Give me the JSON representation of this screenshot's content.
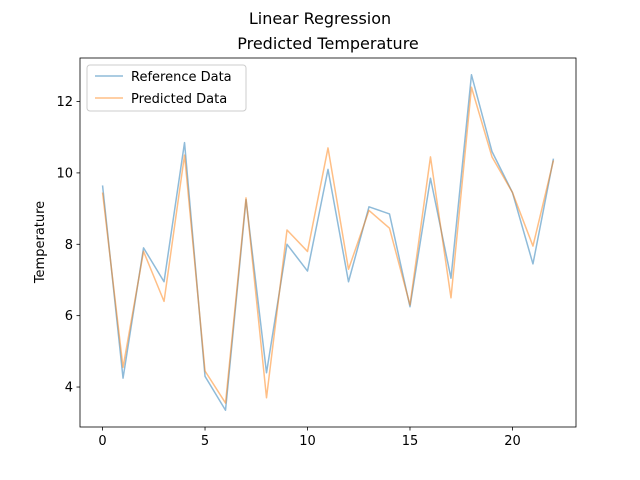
{
  "chart_data": {
    "type": "line",
    "suptitle": "Linear Regression",
    "title": "Predicted Temperature",
    "xlabel": "",
    "ylabel": "Temperature",
    "x": [
      0,
      1,
      2,
      3,
      4,
      5,
      6,
      7,
      8,
      9,
      10,
      11,
      12,
      13,
      14,
      15,
      16,
      17,
      18,
      19,
      20,
      21,
      22
    ],
    "series": [
      {
        "name": "Reference Data",
        "color": "#1f77b4",
        "values": [
          9.65,
          4.25,
          7.9,
          6.95,
          10.85,
          4.3,
          3.35,
          9.25,
          4.4,
          8.0,
          7.25,
          10.1,
          6.95,
          9.05,
          8.85,
          6.25,
          9.85,
          7.05,
          12.75,
          10.6,
          9.45,
          7.45,
          10.4
        ]
      },
      {
        "name": "Predicted Data",
        "color": "#ff7f0e",
        "values": [
          9.45,
          4.55,
          7.8,
          6.4,
          10.5,
          4.45,
          3.55,
          9.3,
          3.7,
          8.4,
          7.8,
          10.7,
          7.3,
          8.95,
          8.45,
          6.3,
          10.45,
          6.5,
          12.4,
          10.45,
          9.45,
          7.95,
          10.35
        ]
      }
    ],
    "xlim": [
      -1.1,
      23.1
    ],
    "ylim": [
      2.88,
      13.22
    ],
    "xticks": [
      0,
      5,
      10,
      15,
      20
    ],
    "xtick_labels": [
      "0",
      "5",
      "10",
      "15",
      "20"
    ],
    "yticks": [
      4,
      6,
      8,
      10,
      12
    ],
    "ytick_labels": [
      "4",
      "6",
      "8",
      "10",
      "12"
    ],
    "legend_position": "top-left",
    "grid": false
  }
}
